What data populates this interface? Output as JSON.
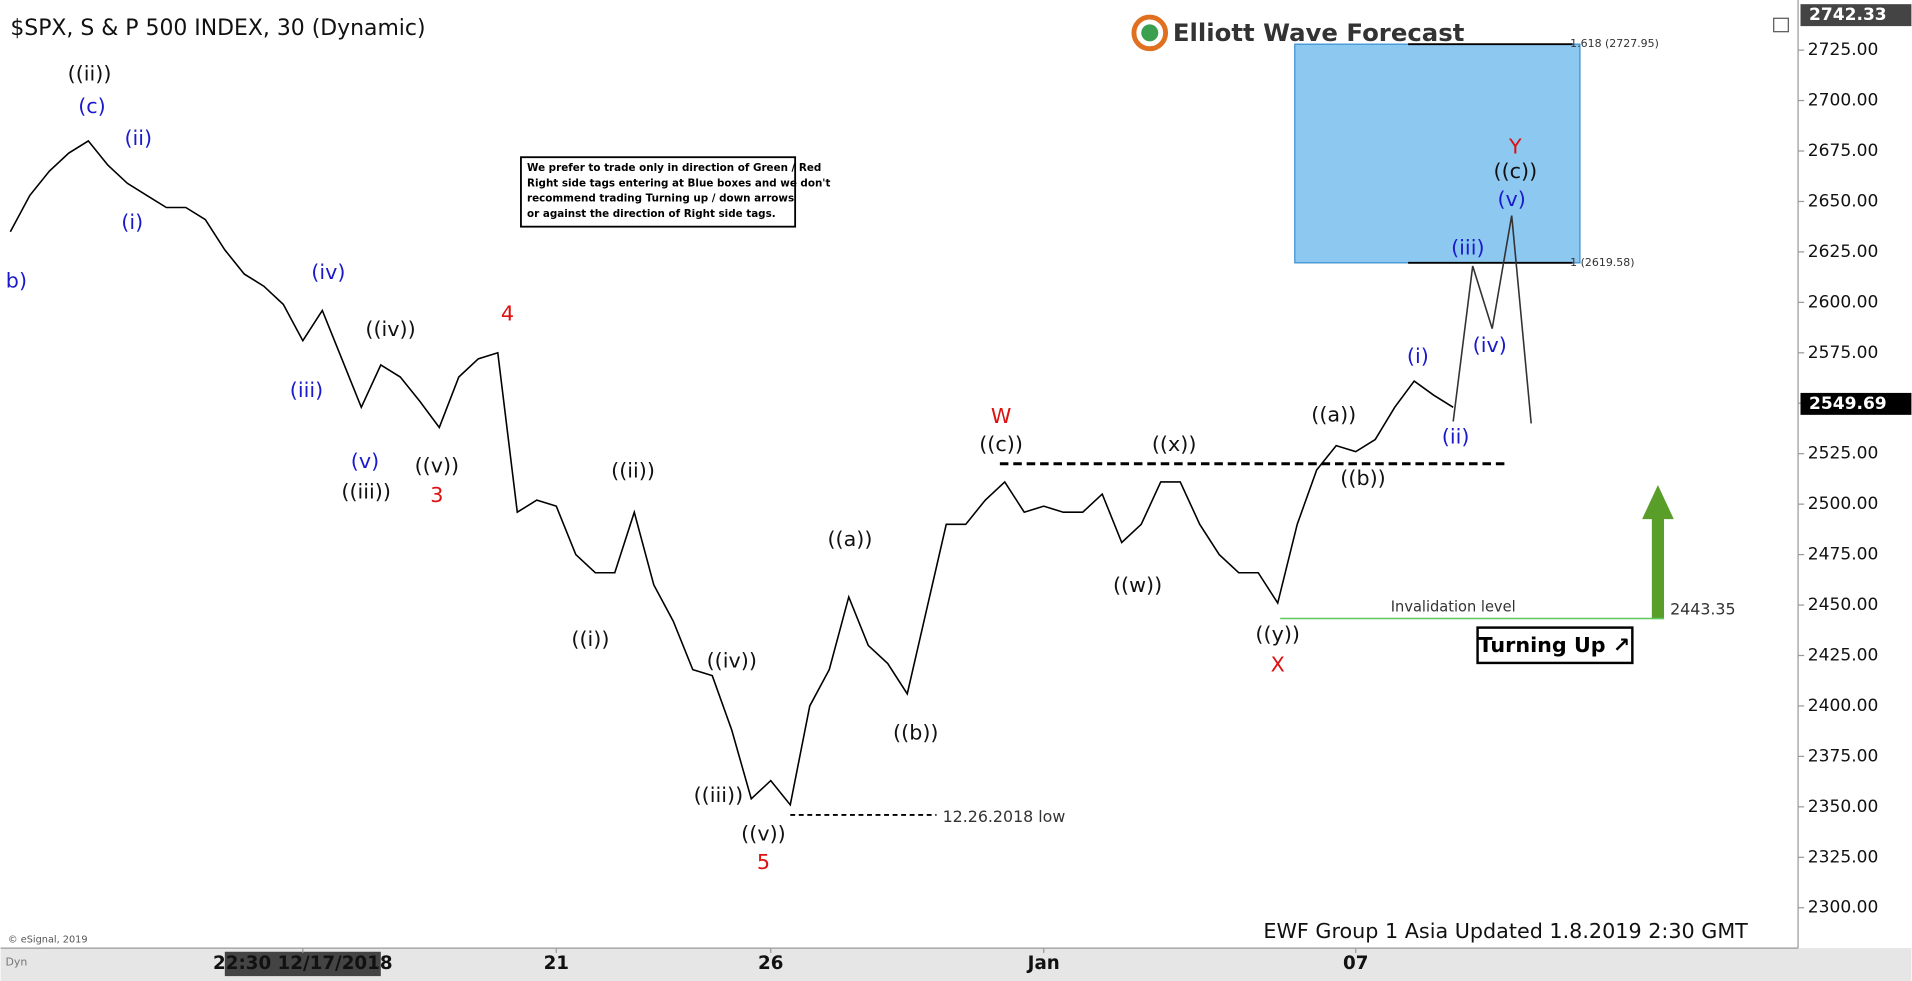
{
  "chart_data": {
    "type": "line",
    "title": "$SPX, S & P 500 INDEX, 30 (Dynamic)",
    "logo": "Elliott Wave Forecast",
    "footer": "EWF Group 1 Asia Updated 1.8.2019 2:30 GMT",
    "credit": "© eSignal, 2019",
    "corner_label": "Dyn",
    "signal": "Turning Up ↗",
    "note": [
      "We prefer to trade only in direction of Green / Red",
      "Right side tags entering at Blue boxes and we don't",
      "recommend trading Turning up / down arrows",
      "or against the direction of Right side tags."
    ],
    "categories": [
      null,
      null,
      null,
      null,
      null,
      null,
      null,
      null,
      null,
      null,
      null,
      null,
      null,
      null,
      null,
      "22:30 12/17/2018",
      null,
      null,
      null,
      null,
      null,
      null,
      null,
      null,
      null,
      null,
      null,
      null,
      "21",
      null,
      null,
      null,
      null,
      null,
      null,
      null,
      null,
      null,
      null,
      "26",
      null,
      null,
      null,
      null,
      null,
      null,
      null,
      null,
      null,
      null,
      null,
      null,
      null,
      "Jan",
      null,
      null,
      null,
      null,
      null,
      null,
      null,
      null,
      null,
      null,
      null,
      null,
      null,
      null,
      null,
      "07",
      null,
      null,
      null,
      null,
      null,
      null,
      null,
      null,
      null,
      null,
      null,
      null,
      null,
      null,
      null,
      null,
      null,
      null,
      null,
      null,
      null,
      null
    ],
    "values": [
      2635,
      2653,
      2665,
      2674,
      2680,
      2668,
      2659,
      2653,
      2647,
      2647,
      2641,
      2626,
      2614,
      2608,
      2599,
      2581,
      2596,
      2572,
      2548,
      2569,
      2563,
      2551,
      2538,
      2563,
      2572,
      2575,
      2496,
      2502,
      2499,
      2475,
      2466,
      2466,
      2496,
      2460,
      2442,
      2418,
      2415,
      2388,
      2354,
      2363,
      2351,
      2400,
      2418,
      2454,
      2430,
      2421,
      2406,
      2448,
      2490,
      2490,
      2502,
      2511,
      2496,
      2499,
      2496,
      2496,
      2505,
      2481,
      2490,
      2511,
      2511,
      2490,
      2475,
      2466,
      2466,
      2451,
      2490,
      2517,
      2529,
      2526,
      2532,
      2548,
      2561,
      2554,
      2548,
      null,
      null,
      null,
      null,
      null,
      null,
      null,
      null,
      null,
      null,
      null,
      null,
      null,
      null,
      null,
      null,
      null
    ],
    "projection": [
      null,
      null,
      null,
      null,
      null,
      null,
      null,
      null,
      null,
      null,
      null,
      null,
      null,
      null,
      null,
      null,
      null,
      null,
      null,
      null,
      null,
      null,
      null,
      null,
      null,
      null,
      null,
      null,
      null,
      null,
      null,
      null,
      null,
      null,
      null,
      null,
      null,
      null,
      null,
      null,
      null,
      null,
      null,
      null,
      null,
      null,
      null,
      null,
      null,
      null,
      null,
      null,
      null,
      null,
      null,
      null,
      null,
      null,
      null,
      null,
      null,
      null,
      null,
      null,
      null,
      null,
      null,
      null,
      null,
      null,
      null,
      null,
      null,
      null,
      2541,
      2618,
      2587,
      2643,
      2540,
      null,
      null,
      null,
      null,
      null,
      null,
      null,
      null,
      null,
      null,
      null,
      null,
      null
    ],
    "color": "#000000",
    "projection_color": "#333333",
    "ylim": [
      2280,
      2745
    ],
    "yticks": [
      {
        "value": 2300,
        "label": "2300.00"
      },
      {
        "value": 2325,
        "label": "2325.00"
      },
      {
        "value": 2350,
        "label": "2350.00"
      },
      {
        "value": 2375,
        "label": "2375.00"
      },
      {
        "value": 2400,
        "label": "2400.00"
      },
      {
        "value": 2425,
        "label": "2425.00"
      },
      {
        "value": 2450,
        "label": "2450.00"
      },
      {
        "value": 2475,
        "label": "2475.00"
      },
      {
        "value": 2500,
        "label": "2500.00"
      },
      {
        "value": 2525,
        "label": "2525.00"
      },
      {
        "value": 2550,
        "label": "2550.00"
      },
      {
        "value": 2575,
        "label": "2575.00"
      },
      {
        "value": 2600,
        "label": "2600.00"
      },
      {
        "value": 2625,
        "label": "2625.00"
      },
      {
        "value": 2650,
        "label": "2650.00"
      },
      {
        "value": 2675,
        "label": "2675.00"
      },
      {
        "value": 2700,
        "label": "2700.00"
      },
      {
        "value": 2725,
        "label": "2725.00"
      }
    ],
    "grid": false,
    "price_tags": [
      2742.33,
      2549.69
    ],
    "fib_levels": [
      {
        "value": 2727.95,
        "label": "1.618 (2727.95)"
      },
      {
        "value": 2619.58,
        "label": "1 (2619.58)"
      }
    ],
    "box_color": "#8cc8f0",
    "invalidation": {
      "value": 2443.35,
      "label": "Invalidation level"
    },
    "low_line": {
      "value": 2346,
      "label": "12.26.2018 low"
    },
    "resistance_level": 2520,
    "wave_labels": [
      {
        "text": "b)",
        "color": "#1a1acc"
      },
      {
        "text": "((ii))",
        "color": "#111111"
      },
      {
        "text": "(c)",
        "color": "#1a1acc"
      },
      {
        "text": "(ii)",
        "color": "#1a1acc"
      },
      {
        "text": "(i)",
        "color": "#1a1acc"
      },
      {
        "text": "(iv)",
        "color": "#1a1acc"
      },
      {
        "text": "(iii)",
        "color": "#1a1acc"
      },
      {
        "text": "(v)",
        "color": "#1a1acc"
      },
      {
        "text": "((iii))",
        "color": "#111111"
      },
      {
        "text": "((iv))",
        "color": "#111111"
      },
      {
        "text": "((v))",
        "color": "#111111"
      },
      {
        "text": "3",
        "color": "#dd1111"
      },
      {
        "text": "4",
        "color": "#dd1111"
      },
      {
        "text": "((ii))",
        "color": "#111111"
      },
      {
        "text": "((i))",
        "color": "#111111"
      },
      {
        "text": "((iv))",
        "color": "#111111"
      },
      {
        "text": "((iii))",
        "color": "#111111"
      },
      {
        "text": "((v))",
        "color": "#111111"
      },
      {
        "text": "5",
        "color": "#dd1111"
      },
      {
        "text": "((a))",
        "color": "#111111"
      },
      {
        "text": "((b))",
        "color": "#111111"
      },
      {
        "text": "W",
        "color": "#dd1111"
      },
      {
        "text": "((c))",
        "color": "#111111"
      },
      {
        "text": "((x))",
        "color": "#111111"
      },
      {
        "text": "((w))",
        "color": "#111111"
      },
      {
        "text": "((y))",
        "color": "#111111"
      },
      {
        "text": "X",
        "color": "#dd1111"
      },
      {
        "text": "((a))",
        "color": "#111111"
      },
      {
        "text": "((b))",
        "color": "#111111"
      },
      {
        "text": "(i)",
        "color": "#1a1acc"
      },
      {
        "text": "(ii)",
        "color": "#1a1acc"
      },
      {
        "text": "(iii)",
        "color": "#1a1acc"
      },
      {
        "text": "(iv)",
        "color": "#1a1acc"
      },
      {
        "text": "(v)",
        "color": "#1a1acc"
      },
      {
        "text": "((c))",
        "color": "#111111"
      },
      {
        "text": "Y",
        "color": "#dd1111"
      }
    ]
  }
}
